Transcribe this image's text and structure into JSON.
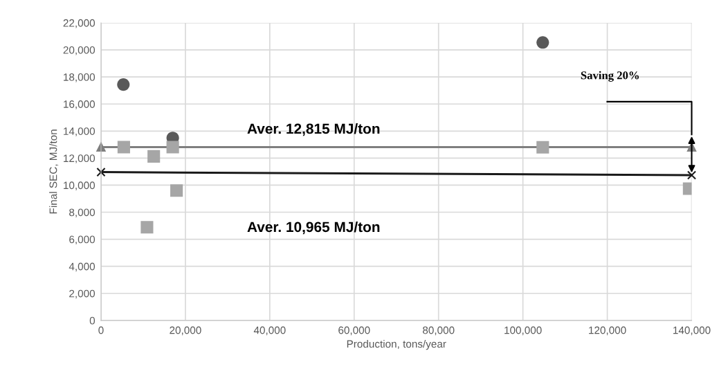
{
  "chart_data": {
    "type": "scatter",
    "xlabel": "Production, tons/year",
    "ylabel": "Final SEC, MJ/ton",
    "series": [
      {
        "marker": "circle",
        "color": "#595959",
        "x": [
          5300,
          17000,
          104700
        ],
        "values": [
          17440,
          13490,
          20550
        ]
      },
      {
        "marker": "square",
        "color": "#a6a6a6",
        "x": [
          5400,
          10900,
          12500,
          17000,
          17900,
          104700,
          139400
        ],
        "values": [
          12810,
          6890,
          12130,
          12810,
          9600,
          12800,
          9740
        ]
      },
      {
        "type": "line",
        "marker": "triangle",
        "color": "#7f7f7f",
        "x": [
          0,
          140000
        ],
        "values": [
          12815,
          12815
        ]
      },
      {
        "type": "line",
        "marker": "cross",
        "color": "#1a1a1a",
        "x": [
          0,
          140000
        ],
        "values": [
          10965,
          10740
        ]
      }
    ],
    "xlim": [
      0,
      140000
    ],
    "ylim": [
      0,
      22000
    ],
    "xticks": [
      0,
      {
        "value": 20000,
        "label": "20,000"
      },
      {
        "value": 40000,
        "label": "40,000"
      },
      {
        "value": 60000,
        "label": "60,000"
      },
      {
        "value": 80000,
        "label": "80,000"
      },
      {
        "value": 100000,
        "label": "100,000"
      },
      {
        "value": 120000,
        "label": "120,000"
      },
      {
        "value": 140000,
        "label": "140,000"
      }
    ],
    "yticks": [
      0,
      {
        "value": 2000,
        "label": "2,000"
      },
      {
        "value": 4000,
        "label": "4,000"
      },
      {
        "value": 6000,
        "label": "6,000"
      },
      {
        "value": 8000,
        "label": "8,000"
      },
      {
        "value": 10000,
        "label": "10,000"
      },
      {
        "value": 12000,
        "label": "12,000"
      },
      {
        "value": 14000,
        "label": "14,000"
      },
      {
        "value": 16000,
        "label": "16,000"
      },
      {
        "value": 18000,
        "label": "18,000"
      },
      {
        "value": 20000,
        "label": "20,000"
      },
      {
        "value": 22000,
        "label": "22,000"
      }
    ],
    "grid": true,
    "annotations": [
      "Aver. 12,815 MJ/ton",
      "Aver. 10,965 MJ/ton",
      "Saving 20%"
    ]
  }
}
